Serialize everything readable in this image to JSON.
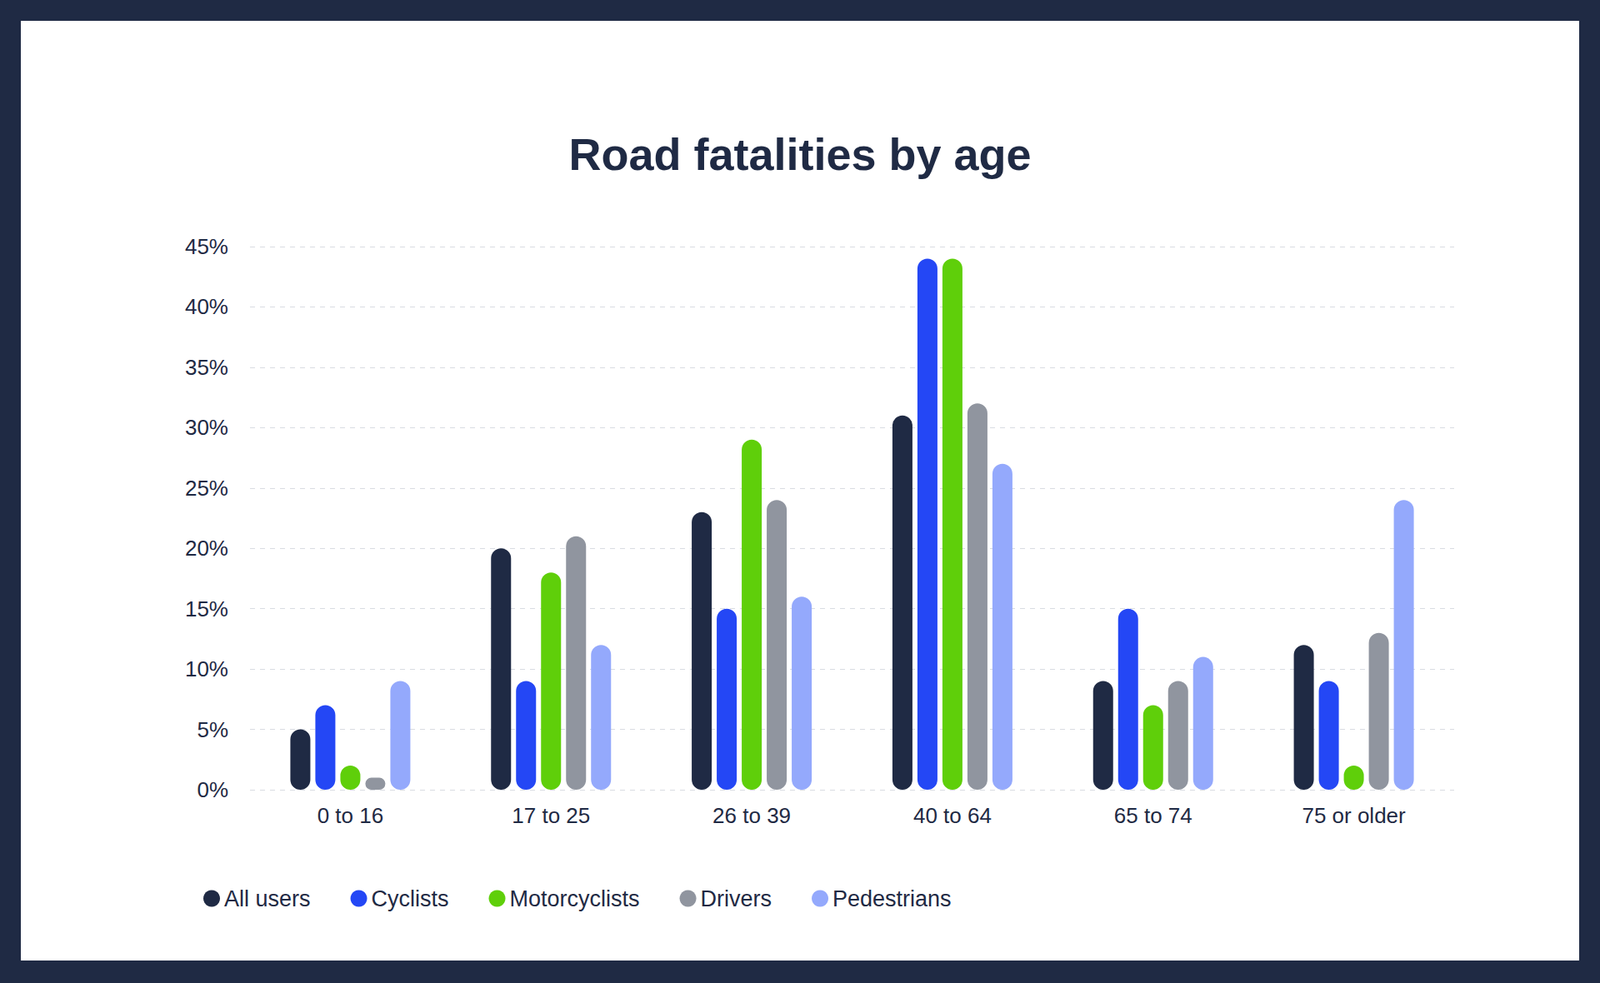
{
  "chart_data": {
    "type": "bar",
    "title": "Road fatalities by age",
    "categories": [
      "0 to 16",
      "17 to 25",
      "26 to 39",
      "40 to 64",
      "65 to 74",
      "75 or older"
    ],
    "series": [
      {
        "name": "All users",
        "color": "#1f2a44",
        "values": [
          5,
          20,
          23,
          31,
          9,
          12
        ]
      },
      {
        "name": "Cyclists",
        "color": "#2447f5",
        "values": [
          7,
          9,
          15,
          44,
          15,
          9
        ]
      },
      {
        "name": "Motorcyclists",
        "color": "#5fcf0a",
        "values": [
          2,
          18,
          29,
          44,
          7,
          2
        ]
      },
      {
        "name": "Drivers",
        "color": "#90959f",
        "values": [
          1,
          21,
          24,
          32,
          9,
          13
        ]
      },
      {
        "name": "Pedestrians",
        "color": "#94a9fc",
        "values": [
          9,
          12,
          16,
          27,
          11,
          24
        ]
      }
    ],
    "ylim": [
      0,
      45
    ],
    "yticks": [
      {
        "value": 0,
        "label": "0%"
      },
      {
        "value": 5,
        "label": "5%"
      },
      {
        "value": 10,
        "label": "10%"
      },
      {
        "value": 15,
        "label": "15%"
      },
      {
        "value": 20,
        "label": "20%"
      },
      {
        "value": 25,
        "label": "25%"
      },
      {
        "value": 30,
        "label": "30%"
      },
      {
        "value": 35,
        "label": "35%"
      },
      {
        "value": 40,
        "label": "40%"
      },
      {
        "value": 45,
        "label": "45%"
      }
    ],
    "grid": true,
    "legend": "bottom"
  }
}
